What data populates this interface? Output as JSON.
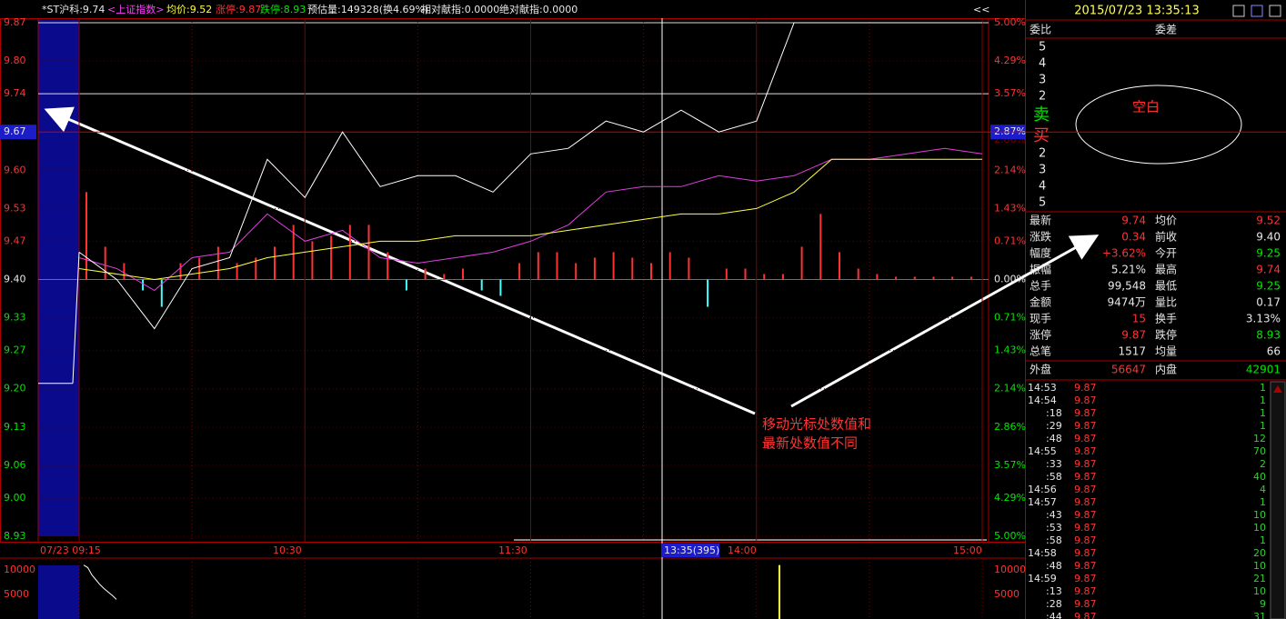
{
  "header": {
    "stock": "*ST沪科:9.74",
    "index": "<上证指数>",
    "avg": "均价:9.52",
    "limit_up": "涨停:9.87",
    "limit_down": "跌停:8.93",
    "est_volume": "预估量:149328(换4.69%)",
    "rel": "相对献指:0.0000",
    "abs": "绝对献指:0.0000",
    "collapse": "<<"
  },
  "price_axis": {
    "ylim": [
      8.93,
      9.87
    ],
    "ticks": [
      {
        "value": 9.87,
        "label": "9.87"
      },
      {
        "value": 9.8,
        "label": "9.80"
      },
      {
        "value": 9.74,
        "label": "9.74"
      },
      {
        "value": 9.67,
        "label": "9.67"
      },
      {
        "value": 9.6,
        "label": "9.60"
      },
      {
        "value": 9.53,
        "label": "9.53"
      },
      {
        "value": 9.47,
        "label": "9.47"
      },
      {
        "value": 9.4,
        "label": "9.40"
      },
      {
        "value": 9.33,
        "label": "9.33"
      },
      {
        "value": 9.27,
        "label": "9.27"
      },
      {
        "value": 9.2,
        "label": "9.20"
      },
      {
        "value": 9.13,
        "label": "9.13"
      },
      {
        "value": 9.06,
        "label": "9.06"
      },
      {
        "value": 9,
        "label": "9.00"
      },
      {
        "value": 8.93,
        "label": "8.93"
      }
    ],
    "percents": [
      "5.00%",
      "4.29%",
      "3.57%",
      "2.86%",
      "2.14%",
      "1.43%",
      "0.71%",
      "0.00%",
      "0.71%",
      "1.43%",
      "2.14%",
      "2.86%",
      "3.57%",
      "4.29%",
      "5.00%"
    ],
    "cursor_percent": "2.87%"
  },
  "time_axis": {
    "labels": [
      "07/23 09:15",
      "10:30",
      "11:30",
      "14:00",
      "15:00"
    ],
    "cursor": "13:35(395)"
  },
  "auction_price": 9.21,
  "price_line": [
    9.45,
    9.4,
    9.31,
    9.42,
    9.44,
    9.62,
    9.55,
    9.67,
    9.57,
    9.59,
    9.59,
    9.56,
    9.63,
    9.64,
    9.69,
    9.67,
    9.71,
    9.67,
    9.69,
    9.87,
    9.87,
    9.87,
    9.87,
    9.87,
    9.87
  ],
  "avg_line": [
    9.42,
    9.41,
    9.4,
    9.41,
    9.42,
    9.44,
    9.45,
    9.46,
    9.47,
    9.47,
    9.48,
    9.48,
    9.48,
    9.49,
    9.5,
    9.51,
    9.52,
    9.52,
    9.53,
    9.56,
    9.62,
    9.62,
    9.62,
    9.62,
    9.62
  ],
  "index_line": [
    9.44,
    9.42,
    9.38,
    9.44,
    9.45,
    9.52,
    9.47,
    9.49,
    9.44,
    9.43,
    9.44,
    9.45,
    9.47,
    9.5,
    9.56,
    9.57,
    9.57,
    9.59,
    9.58,
    9.59,
    9.62,
    9.62,
    9.63,
    9.64,
    9.63
  ],
  "flow_bars": [
    0.16,
    0.06,
    0.03,
    -0.02,
    -0.05,
    0.03,
    0.04,
    0.06,
    0.03,
    0.04,
    0.06,
    0.1,
    0.07,
    0.08,
    0.1,
    0.1,
    0.05,
    -0.02,
    0.02,
    0.01,
    0.02,
    -0.02,
    -0.03,
    0.03,
    0.05,
    0.05,
    0.03,
    0.04,
    0.05,
    0.04,
    0.03,
    0.05,
    0.04,
    -0.05,
    0.02,
    0.02,
    0.01,
    0.01,
    0.06,
    0.12,
    0.05,
    0.02,
    0.01,
    0.005,
    0.005,
    0.005,
    0.005,
    0.005
  ],
  "volume_axis": {
    "ylim": [
      0,
      11500
    ],
    "ticks": [
      10000,
      5000
    ]
  },
  "volume_line": [
    11000,
    10500,
    9000,
    8000,
    7000,
    6200,
    5500,
    4800,
    4000
  ],
  "volume_spike": 11000,
  "panel": {
    "datetime": "2015/07/23 13:35:13",
    "order_ratio": "委比",
    "order_diff": "委差",
    "sell_levels": [
      "5",
      "4",
      "3",
      "2"
    ],
    "sell": "卖",
    "buy": "买",
    "buy_levels": [
      "2",
      "3",
      "4",
      "5"
    ],
    "blank": "空白",
    "quote": [
      {
        "l1": "最新",
        "v1": "9.74",
        "c1": "up",
        "l2": "均价",
        "v2": "9.52",
        "c2": "up"
      },
      {
        "l1": "涨跌",
        "v1": "0.34",
        "c1": "up",
        "l2": "前收",
        "v2": "9.40",
        "c2": "flat"
      },
      {
        "l1": "幅度",
        "v1": "+3.62%",
        "c1": "up",
        "l2": "今开",
        "v2": "9.25",
        "c2": "down"
      },
      {
        "l1": "振幅",
        "v1": "5.21%",
        "c1": "flat",
        "l2": "最高",
        "v2": "9.74",
        "c2": "up"
      },
      {
        "l1": "总手",
        "v1": "99,548",
        "c1": "flat",
        "l2": "最低",
        "v2": "9.25",
        "c2": "down"
      },
      {
        "l1": "金额",
        "v1": "9474万",
        "c1": "flat",
        "l2": "量比",
        "v2": "0.17",
        "c2": "flat"
      },
      {
        "l1": "现手",
        "v1": "15",
        "c1": "up",
        "l2": "换手",
        "v2": "3.13%",
        "c2": "flat"
      },
      {
        "l1": "涨停",
        "v1": "9.87",
        "c1": "up",
        "l2": "跌停",
        "v2": "8.93",
        "c2": "down"
      },
      {
        "l1": "总笔",
        "v1": "1517",
        "c1": "flat",
        "l2": "均量",
        "v2": "66",
        "c2": "flat"
      }
    ],
    "outer": {
      "l1": "外盘",
      "v1": "56647",
      "l2": "内盘",
      "v2": "42901"
    },
    "ticks": [
      {
        "time": "14:53",
        "price": "9.87",
        "vol": "1"
      },
      {
        "time": "14:54",
        "price": "9.87",
        "vol": "1"
      },
      {
        "time": ":18",
        "price": "9.87",
        "vol": "1"
      },
      {
        "time": ":29",
        "price": "9.87",
        "vol": "1"
      },
      {
        "time": ":48",
        "price": "9.87",
        "vol": "12"
      },
      {
        "time": "14:55",
        "price": "9.87",
        "vol": "70"
      },
      {
        "time": ":33",
        "price": "9.87",
        "vol": "2"
      },
      {
        "time": ":58",
        "price": "9.87",
        "vol": "40"
      },
      {
        "time": "14:56",
        "price": "9.87",
        "vol": "4"
      },
      {
        "time": "14:57",
        "price": "9.87",
        "vol": "1"
      },
      {
        "time": ":43",
        "price": "9.87",
        "vol": "10"
      },
      {
        "time": ":53",
        "price": "9.87",
        "vol": "10"
      },
      {
        "time": ":58",
        "price": "9.87",
        "vol": "1"
      },
      {
        "time": "14:58",
        "price": "9.87",
        "vol": "20"
      },
      {
        "time": ":48",
        "price": "9.87",
        "vol": "10"
      },
      {
        "time": "14:59",
        "price": "9.87",
        "vol": "21"
      },
      {
        "time": ":13",
        "price": "9.87",
        "vol": "10"
      },
      {
        "time": ":28",
        "price": "9.87",
        "vol": "9"
      },
      {
        "time": ":44",
        "price": "9.87",
        "vol": "31"
      }
    ]
  },
  "annotation": [
    "移动光标处数值和",
    "最新处数值不同"
  ]
}
